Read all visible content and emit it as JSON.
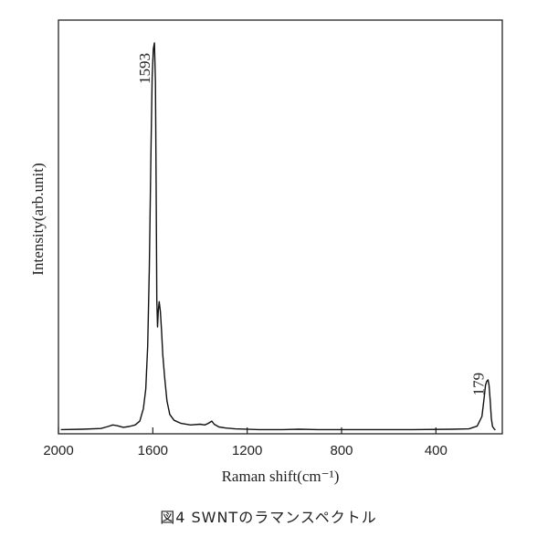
{
  "caption": "図4 SWNTのラマンスペクトル",
  "chart_data": {
    "type": "line",
    "title": "",
    "xlabel": "Raman shift(cm⁻¹)",
    "ylabel": "Intensity(arb.unit)",
    "x_reversed": true,
    "xlim": [
      2000,
      145
    ],
    "ylim": [
      0,
      1.0
    ],
    "x_ticks": [
      2000,
      1600,
      1200,
      800,
      400
    ],
    "grid": false,
    "series": [
      {
        "color": "#111111",
        "points": [
          [
            1990,
            0.006
          ],
          [
            1900,
            0.007
          ],
          [
            1820,
            0.009
          ],
          [
            1790,
            0.014
          ],
          [
            1770,
            0.018
          ],
          [
            1750,
            0.016
          ],
          [
            1725,
            0.012
          ],
          [
            1700,
            0.014
          ],
          [
            1675,
            0.018
          ],
          [
            1655,
            0.028
          ],
          [
            1640,
            0.06
          ],
          [
            1630,
            0.11
          ],
          [
            1622,
            0.22
          ],
          [
            1615,
            0.42
          ],
          [
            1608,
            0.72
          ],
          [
            1603,
            0.91
          ],
          [
            1598,
            0.985
          ],
          [
            1593,
            1.0
          ],
          [
            1589,
            0.9
          ],
          [
            1586,
            0.62
          ],
          [
            1583,
            0.34
          ],
          [
            1580,
            0.27
          ],
          [
            1577,
            0.31
          ],
          [
            1573,
            0.335
          ],
          [
            1568,
            0.31
          ],
          [
            1563,
            0.26
          ],
          [
            1558,
            0.2
          ],
          [
            1550,
            0.14
          ],
          [
            1540,
            0.08
          ],
          [
            1528,
            0.045
          ],
          [
            1510,
            0.03
          ],
          [
            1480,
            0.022
          ],
          [
            1440,
            0.018
          ],
          [
            1400,
            0.02
          ],
          [
            1380,
            0.018
          ],
          [
            1365,
            0.022
          ],
          [
            1350,
            0.028
          ],
          [
            1340,
            0.02
          ],
          [
            1320,
            0.013
          ],
          [
            1290,
            0.01
          ],
          [
            1250,
            0.008
          ],
          [
            1150,
            0.006
          ],
          [
            1050,
            0.006
          ],
          [
            980,
            0.007
          ],
          [
            900,
            0.006
          ],
          [
            700,
            0.006
          ],
          [
            500,
            0.006
          ],
          [
            330,
            0.007
          ],
          [
            260,
            0.008
          ],
          [
            225,
            0.015
          ],
          [
            205,
            0.04
          ],
          [
            196,
            0.085
          ],
          [
            190,
            0.12
          ],
          [
            185,
            0.13
          ],
          [
            182,
            0.132
          ],
          [
            179,
            0.134
          ],
          [
            175,
            0.12
          ],
          [
            170,
            0.08
          ],
          [
            165,
            0.035
          ],
          [
            160,
            0.014
          ],
          [
            152,
            0.007
          ],
          [
            148,
            0.005
          ]
        ]
      }
    ],
    "annotations": [
      {
        "text": "1593",
        "x": 1593
      },
      {
        "text": "179",
        "x": 179
      }
    ]
  }
}
